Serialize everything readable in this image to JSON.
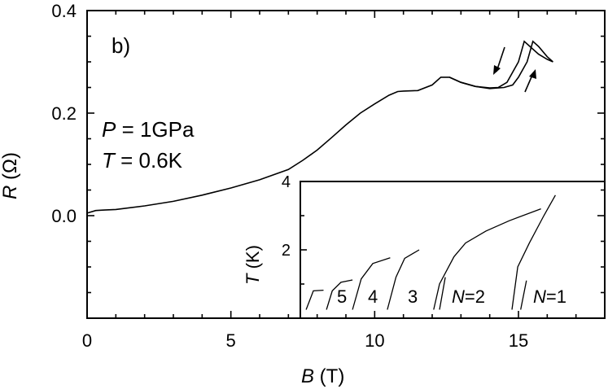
{
  "chart_data": [
    {
      "type": "line",
      "panel_label": "b)",
      "xlabel": "B  (T)",
      "ylabel": "R  (Ω)",
      "xlim": [
        0,
        18
      ],
      "ylim": [
        -0.2,
        0.4
      ],
      "x_tick_labels": [
        "0",
        "5",
        "10",
        "15"
      ],
      "y_tick_labels": [
        "0.0",
        "0.2",
        "0.4"
      ],
      "annotations": [
        "P = 1GPa",
        "T = 0.6K"
      ],
      "series": [
        {
          "x": [
            0,
            0.3,
            0.6,
            1,
            2,
            3,
            4,
            5,
            6,
            7,
            7.5,
            8,
            8.5,
            9,
            9.5,
            10,
            10.5,
            10.8,
            11,
            11.5,
            12,
            12.3,
            12.6,
            13,
            13.5,
            14,
            14.3,
            14.6,
            15,
            15.2,
            15.4,
            15.7,
            16,
            16.2
          ],
          "y": [
            0.005,
            0.01,
            0.011,
            0.012,
            0.019,
            0.028,
            0.04,
            0.054,
            0.07,
            0.09,
            0.108,
            0.128,
            0.152,
            0.177,
            0.2,
            0.218,
            0.235,
            0.242,
            0.243,
            0.244,
            0.255,
            0.27,
            0.27,
            0.26,
            0.252,
            0.249,
            0.25,
            0.26,
            0.3,
            0.34,
            0.33,
            0.315,
            0.305,
            0.3
          ]
        },
        {
          "x": [
            12.6,
            13,
            13.5,
            14,
            14.5,
            14.8,
            15,
            15.3,
            15.5,
            15.7,
            16,
            16.2
          ],
          "y": [
            0.27,
            0.26,
            0.252,
            0.248,
            0.25,
            0.255,
            0.27,
            0.3,
            0.34,
            0.33,
            0.31,
            0.3
          ]
        }
      ]
    },
    {
      "type": "line",
      "ylabel": "T  (K)",
      "xlim": [
        7.5,
        18
      ],
      "ylim": [
        0,
        4
      ],
      "y_tick_labels": [
        "2",
        "4"
      ],
      "labels": [
        "5",
        "4",
        "3",
        "N=2",
        "N=1"
      ],
      "series": [
        {
          "x": [
            7.7,
            7.95,
            8.3
          ],
          "y": [
            0.25,
            0.8,
            0.82
          ]
        },
        {
          "x": [
            8.4,
            8.6,
            8.9,
            9.3
          ],
          "y": [
            0.25,
            0.8,
            1.05,
            1.12
          ]
        },
        {
          "x": [
            9.3,
            9.6,
            10.0,
            10.6
          ],
          "y": [
            0.25,
            1.15,
            1.6,
            1.77
          ]
        },
        {
          "x": [
            10.5,
            10.8,
            11.1,
            11.6
          ],
          "y": [
            0.25,
            1.2,
            1.75,
            2.0
          ]
        },
        {
          "x": [
            12.1,
            12.3,
            12.8,
            13.2,
            13.9,
            14.7,
            15.8
          ],
          "y": [
            0.25,
            1.0,
            1.8,
            2.2,
            2.55,
            2.85,
            3.2
          ]
        },
        {
          "x": [
            12.3,
            12.5
          ],
          "y": [
            0.25,
            1.2
          ]
        },
        {
          "x": [
            14.8,
            15.0,
            15.4,
            15.9,
            16.3
          ],
          "y": [
            0.25,
            1.5,
            2.2,
            3.0,
            3.6
          ]
        },
        {
          "x": [
            15.1,
            15.3
          ],
          "y": [
            0.25,
            1.1
          ]
        }
      ]
    }
  ]
}
